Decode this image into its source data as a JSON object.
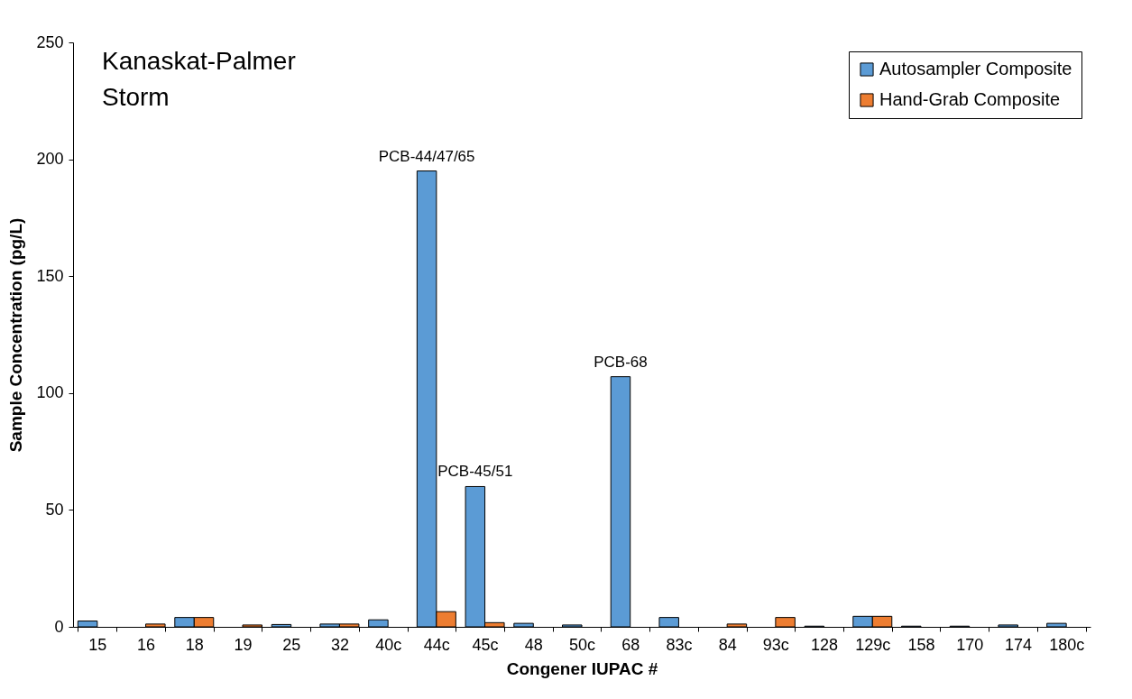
{
  "chart_data": {
    "type": "bar",
    "title": "Kanaskat-Palmer",
    "subtitle": "Storm",
    "xlabel": "Congener IUPAC #",
    "ylabel": "Sample Concentration (pg/L)",
    "categories": [
      "15",
      "16",
      "18",
      "19",
      "25",
      "32",
      "40c",
      "44c",
      "45c",
      "48",
      "50c",
      "68",
      "83c",
      "84",
      "93c",
      "128",
      "129c",
      "158",
      "170",
      "174",
      "180c"
    ],
    "series": [
      {
        "name": "Autosampler Composite",
        "color": "#5b9bd5",
        "values": [
          2.5,
          null,
          4,
          null,
          1,
          1.2,
          3,
          195,
          60,
          1.5,
          0.8,
          107,
          4,
          null,
          null,
          0.3,
          4.5,
          0.3,
          0.3,
          0.8,
          1.5
        ]
      },
      {
        "name": "Hand-Grab Composite",
        "color": "#ed7d31",
        "values": [
          null,
          1.2,
          4,
          0.8,
          null,
          1.2,
          null,
          6.5,
          1.8,
          null,
          null,
          null,
          null,
          1.2,
          4,
          null,
          4.5,
          null,
          null,
          null,
          null
        ]
      }
    ],
    "ylim": [
      0,
      250
    ],
    "yticks": [
      0,
      50,
      100,
      150,
      200,
      250
    ],
    "grid": false,
    "legend": "top right",
    "annotations": [
      {
        "text": "PCB-44/47/65",
        "x": "44c",
        "y": 195
      },
      {
        "text": "PCB-45/51",
        "x": "45c",
        "y": 60
      },
      {
        "text": "PCB-68",
        "x": "68",
        "y": 107
      }
    ]
  }
}
